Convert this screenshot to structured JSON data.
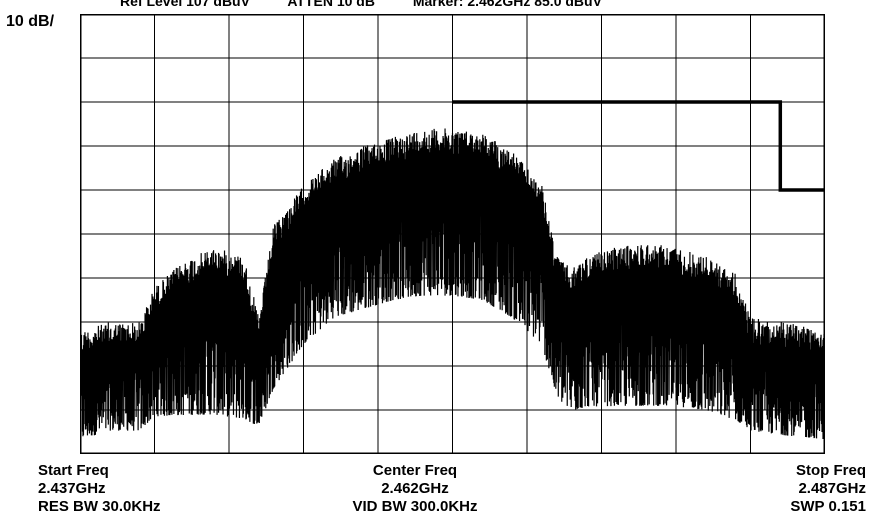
{
  "header": {
    "ref_level": "Ref Level  107  dBuV",
    "atten": "ATTEN  10  dB",
    "marker": "Marker:  2.462GHz    85.0  dBuV"
  },
  "scale": "10 dB/",
  "footer": {
    "start_label": "Start Freq",
    "start_value": "2.437GHz",
    "res_bw": "RES BW 30.0KHz",
    "center_label": "Center Freq",
    "center_value": "2.462GHz",
    "vid_bw": "VID BW 300.0KHz",
    "stop_label": "Stop Freq",
    "stop_value": "2.487GHz",
    "swp": "SWP 0.151"
  },
  "colors": {
    "trace": "#000000",
    "grid": "#000000",
    "background": "#ffffff"
  },
  "chart_data": {
    "type": "line",
    "x_unit": "GHz",
    "y_unit": "dBuV",
    "xlim": [
      2.437,
      2.487
    ],
    "ylim": [
      7,
      107
    ],
    "grid": true,
    "grid_divisions": {
      "x": 10,
      "y": 10
    },
    "series": [
      {
        "role": "trace-upper-envelope",
        "x": [
          2.437,
          2.439,
          2.441,
          2.442,
          2.444,
          2.446,
          2.448,
          2.449,
          2.45,
          2.452,
          2.454,
          2.456,
          2.458,
          2.46,
          2.462,
          2.464,
          2.466,
          2.468,
          2.469,
          2.47,
          2.471,
          2.473,
          2.475,
          2.477,
          2.479,
          2.481,
          2.482,
          2.484,
          2.487
        ],
        "y": [
          35,
          37,
          37,
          45,
          51,
          54,
          52,
          38,
          59,
          68,
          74,
          77,
          79,
          81,
          81,
          80,
          76,
          68,
          52,
          49,
          52,
          54,
          55,
          54,
          52,
          48,
          38,
          37,
          36
        ]
      },
      {
        "role": "trace-lower-envelope",
        "x": [
          2.437,
          2.439,
          2.441,
          2.442,
          2.444,
          2.446,
          2.448,
          2.449,
          2.45,
          2.452,
          2.454,
          2.456,
          2.458,
          2.46,
          2.462,
          2.464,
          2.466,
          2.468,
          2.469,
          2.47,
          2.471,
          2.473,
          2.475,
          2.477,
          2.479,
          2.481,
          2.482,
          2.484,
          2.487
        ],
        "y": [
          9,
          11,
          11,
          14,
          14,
          14,
          13,
          12,
          20,
          30,
          36,
          38,
          40,
          41,
          41,
          40,
          36,
          30,
          18,
          15,
          16,
          16,
          16,
          16,
          15,
          13,
          11,
          10,
          9
        ]
      },
      {
        "role": "limit-line",
        "x": [
          2.462,
          2.484,
          2.484,
          2.487
        ],
        "y": [
          87,
          87,
          67,
          67
        ]
      }
    ]
  }
}
